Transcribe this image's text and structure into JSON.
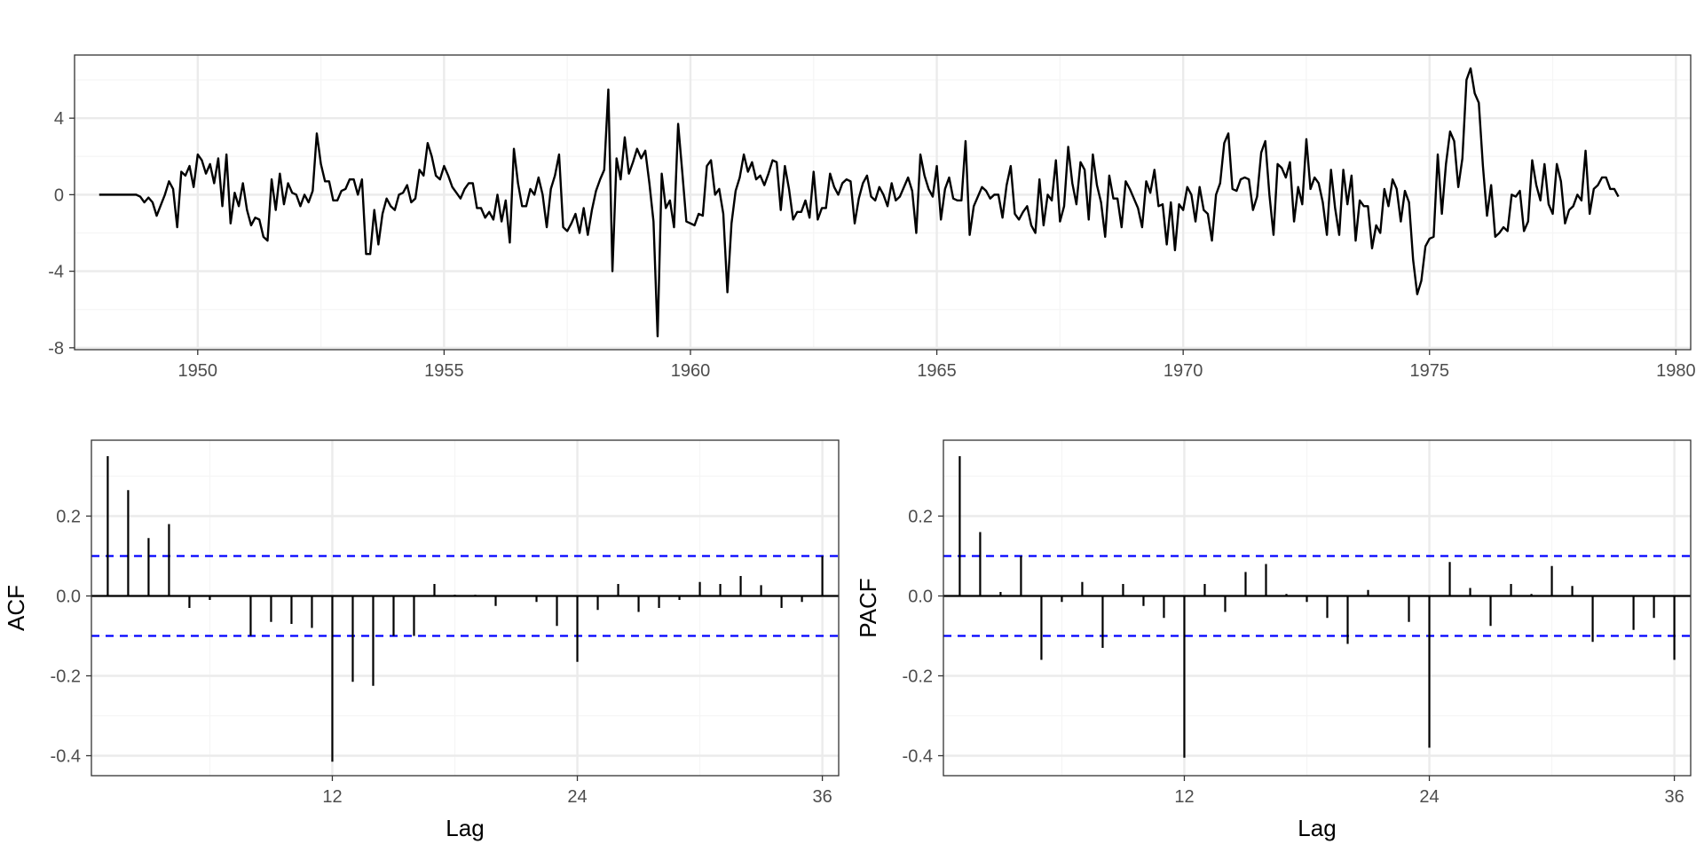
{
  "figure": {
    "background": "#ffffff",
    "panel_border": "#333333",
    "grid_major": "#ebebeb",
    "grid_minor": "#f5f5f5",
    "line_color": "#000000",
    "ci_color": "#0000ff"
  },
  "chart_data": [
    {
      "type": "line",
      "title": "",
      "xlabel": "",
      "ylabel": "",
      "xlim": [
        1947.5,
        1980.3
      ],
      "ylim": [
        -8.1,
        7.3
      ],
      "x_ticks": [
        1950,
        1955,
        1960,
        1965,
        1970,
        1975,
        1980
      ],
      "y_ticks": [
        -8,
        -4,
        0,
        4
      ],
      "x_tick_labels": [
        "1950",
        "1955",
        "1960",
        "1965",
        "1970",
        "1975",
        "1980"
      ],
      "y_tick_labels": [
        "-8",
        "-4",
        "0",
        "4"
      ],
      "grid": true,
      "series": [
        {
          "start": 1948.0,
          "frequency": 12,
          "values": [
            0.0,
            0.0,
            0.0,
            0.0,
            0.0,
            0.0,
            0.0,
            0.0,
            0.0,
            0.0,
            -0.1,
            -0.4,
            -0.15,
            -0.4,
            -1.1,
            -0.55,
            0.0,
            0.7,
            0.3,
            -1.7,
            1.2,
            1.0,
            1.5,
            0.4,
            2.1,
            1.8,
            1.1,
            1.6,
            0.6,
            1.9,
            -0.6,
            2.1,
            -1.5,
            0.1,
            -0.6,
            0.6,
            -0.8,
            -1.6,
            -1.2,
            -1.3,
            -2.2,
            -2.4,
            0.8,
            -0.8,
            1.1,
            -0.5,
            0.6,
            0.1,
            0.0,
            -0.6,
            0.0,
            -0.4,
            0.2,
            3.2,
            1.6,
            0.7,
            0.7,
            -0.3,
            -0.3,
            0.2,
            0.3,
            0.8,
            0.8,
            0.0,
            0.8,
            -3.1,
            -3.1,
            -0.8,
            -2.6,
            -1.0,
            -0.2,
            -0.6,
            -0.8,
            0.0,
            0.1,
            0.5,
            -0.4,
            -0.2,
            1.3,
            1.0,
            2.7,
            2.0,
            1.0,
            0.8,
            1.5,
            1.0,
            0.4,
            0.1,
            -0.2,
            0.3,
            0.6,
            0.6,
            -0.7,
            -0.7,
            -1.2,
            -0.9,
            -1.3,
            0.0,
            -1.4,
            -0.3,
            -2.5,
            2.4,
            0.6,
            -0.6,
            -0.6,
            0.3,
            0.0,
            0.9,
            0.0,
            -1.7,
            0.3,
            1.0,
            2.1,
            -1.7,
            -1.9,
            -1.5,
            -1.0,
            -2.0,
            -0.7,
            -2.1,
            -0.8,
            0.2,
            0.8,
            1.3,
            5.5,
            -4.0,
            1.9,
            0.8,
            3.0,
            1.1,
            1.7,
            2.4,
            1.9,
            2.3,
            0.6,
            -1.4,
            -7.4,
            1.1,
            -0.7,
            -0.3,
            -1.7,
            3.7,
            1.2,
            -1.4,
            -1.5,
            -1.6,
            -1.0,
            -1.1,
            1.5,
            1.8,
            0.0,
            0.3,
            -1.0,
            -5.1,
            -1.5,
            0.2,
            0.9,
            2.1,
            1.2,
            1.7,
            0.8,
            1.0,
            0.5,
            1.1,
            1.8,
            1.7,
            -0.8,
            1.5,
            0.3,
            -1.3,
            -0.9,
            -0.9,
            -0.3,
            -1.2,
            1.2,
            -1.3,
            -0.7,
            -0.7,
            1.1,
            0.4,
            0.0,
            0.6,
            0.8,
            0.7,
            -1.5,
            -0.2,
            0.6,
            1.0,
            -0.1,
            -0.3,
            0.4,
            0.0,
            -0.6,
            0.6,
            -0.3,
            -0.1,
            0.4,
            0.9,
            0.2,
            -2.0,
            2.1,
            1.0,
            0.3,
            -0.1,
            1.5,
            -1.3,
            0.3,
            0.9,
            -0.2,
            -0.3,
            -0.3,
            2.8,
            -2.1,
            -0.6,
            -0.1,
            0.4,
            0.2,
            -0.2,
            0.0,
            0.0,
            -1.2,
            0.5,
            1.5,
            -1.0,
            -1.3,
            -0.9,
            -0.6,
            -1.6,
            -2.0,
            0.8,
            -1.6,
            0.0,
            -0.3,
            1.8,
            -1.4,
            -0.6,
            2.5,
            0.6,
            -0.5,
            1.7,
            1.3,
            -1.3,
            2.1,
            0.5,
            -0.4,
            -2.2,
            1.0,
            -0.2,
            -0.2,
            -1.7,
            0.7,
            0.3,
            -0.2,
            -0.7,
            -1.7,
            0.7,
            0.1,
            1.3,
            -0.6,
            -0.5,
            -2.6,
            -0.4,
            -2.9,
            -0.5,
            -0.8,
            0.4,
            0.0,
            -1.4,
            0.4,
            -0.8,
            -1.0,
            -2.4,
            0.0,
            0.6,
            2.7,
            3.2,
            0.3,
            0.2,
            0.8,
            0.9,
            0.8,
            -0.8,
            -0.1,
            2.2,
            2.8,
            0.0,
            -2.1,
            1.6,
            1.4,
            0.9,
            1.7,
            -1.4,
            0.4,
            -0.5,
            2.9,
            0.3,
            0.9,
            0.6,
            -0.4,
            -2.1,
            1.3,
            -0.7,
            -2.1,
            1.3,
            -0.5,
            1.0,
            -2.4,
            -0.3,
            -0.6,
            -0.6,
            -2.8,
            -1.6,
            -2.0,
            0.3,
            -0.6,
            0.8,
            0.3,
            -1.4,
            0.2,
            -0.4,
            -3.4,
            -5.2,
            -4.5,
            -2.7,
            -2.3,
            -2.2,
            2.1,
            -1.0,
            1.6,
            3.3,
            2.8,
            0.4,
            1.9,
            6.0,
            6.6,
            5.3,
            4.8,
            1.5,
            -1.1,
            0.5,
            -2.2,
            -2.0,
            -1.7,
            -1.9,
            0.0,
            -0.1,
            0.2,
            -1.9,
            -1.4,
            1.8,
            0.5,
            -0.3,
            1.6,
            -0.5,
            -1.0,
            1.6,
            0.7,
            -1.5,
            -0.8,
            -0.6,
            0.0,
            -0.3,
            2.3,
            -1.0,
            0.3,
            0.5,
            0.9,
            0.9,
            0.3,
            0.3,
            -0.1
          ]
        }
      ]
    },
    {
      "type": "bar",
      "title": "",
      "xlabel": "Lag",
      "ylabel": "ACF",
      "xlim": [
        0.2,
        36.8
      ],
      "ylim": [
        -0.45,
        0.39
      ],
      "x_ticks": [
        12,
        24,
        36
      ],
      "y_ticks": [
        -0.4,
        -0.2,
        0.0,
        0.2
      ],
      "x_tick_labels": [
        "12",
        "24",
        "36"
      ],
      "y_tick_labels": [
        "-0.4",
        "-0.2",
        "0.0",
        "0.2"
      ],
      "ci": [
        0.1,
        -0.1
      ],
      "grid": true,
      "categories": [
        1,
        2,
        3,
        4,
        5,
        6,
        7,
        8,
        9,
        10,
        11,
        12,
        13,
        14,
        15,
        16,
        17,
        18,
        19,
        20,
        21,
        22,
        23,
        24,
        25,
        26,
        27,
        28,
        29,
        30,
        31,
        32,
        33,
        34,
        35,
        36
      ],
      "values": [
        0.35,
        0.265,
        0.145,
        0.18,
        -0.03,
        -0.01,
        0.0,
        -0.1,
        -0.065,
        -0.07,
        -0.08,
        -0.415,
        -0.215,
        -0.225,
        -0.1,
        -0.1,
        0.03,
        0.003,
        0.003,
        -0.025,
        0.002,
        -0.015,
        -0.075,
        -0.165,
        -0.035,
        0.03,
        -0.04,
        -0.03,
        -0.01,
        0.035,
        0.03,
        0.05,
        0.027,
        -0.03,
        -0.015,
        0.1
      ]
    },
    {
      "type": "bar",
      "title": "",
      "xlabel": "Lag",
      "ylabel": "PACF",
      "xlim": [
        0.2,
        36.8
      ],
      "ylim": [
        -0.45,
        0.39
      ],
      "x_ticks": [
        12,
        24,
        36
      ],
      "y_ticks": [
        -0.4,
        -0.2,
        0.0,
        0.2
      ],
      "x_tick_labels": [
        "12",
        "24",
        "36"
      ],
      "y_tick_labels": [
        "-0.4",
        "-0.2",
        "0.0",
        "0.2"
      ],
      "ci": [
        0.1,
        -0.1
      ],
      "grid": true,
      "categories": [
        1,
        2,
        3,
        4,
        5,
        6,
        7,
        8,
        9,
        10,
        11,
        12,
        13,
        14,
        15,
        16,
        17,
        18,
        19,
        20,
        21,
        22,
        23,
        24,
        25,
        26,
        27,
        28,
        29,
        30,
        31,
        32,
        33,
        34,
        35,
        36
      ],
      "values": [
        0.35,
        0.16,
        0.01,
        0.1,
        -0.16,
        -0.015,
        0.035,
        -0.13,
        0.03,
        -0.025,
        -0.055,
        -0.405,
        0.03,
        -0.04,
        0.06,
        0.08,
        0.005,
        -0.015,
        -0.055,
        -0.12,
        0.015,
        0.0,
        -0.065,
        -0.38,
        0.085,
        0.02,
        -0.075,
        0.03,
        0.005,
        0.075,
        0.025,
        -0.115,
        0.0,
        -0.085,
        -0.055,
        -0.16
      ]
    }
  ]
}
